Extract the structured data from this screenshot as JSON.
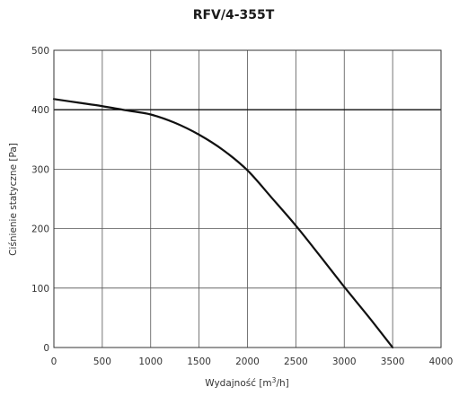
{
  "chart_data": {
    "type": "line",
    "title": "RFV/4-355T",
    "xlabel": {
      "pre": "Wydajność [m",
      "sup": "3",
      "post": "/h]"
    },
    "ylabel": "Ciśnienie statyczne [Pa]",
    "xlim": [
      0,
      4000
    ],
    "ylim": [
      0,
      500
    ],
    "x_ticks": [
      0,
      500,
      1000,
      1500,
      2000,
      2500,
      3000,
      3500,
      4000
    ],
    "y_ticks": [
      0,
      100,
      200,
      300,
      400,
      500
    ],
    "grid": true,
    "reference_lines": [
      {
        "axis": "y",
        "value": 400
      }
    ],
    "series": [
      {
        "x": [
          0,
          250,
          500,
          750,
          1000,
          1250,
          1500,
          1750,
          2000,
          2250,
          2500,
          2750,
          3000,
          3250,
          3500
        ],
        "y": [
          418,
          412,
          406,
          399,
          392,
          378,
          358,
          332,
          298,
          252,
          205,
          154,
          102,
          52,
          0
        ],
        "color": "#111111"
      }
    ]
  }
}
